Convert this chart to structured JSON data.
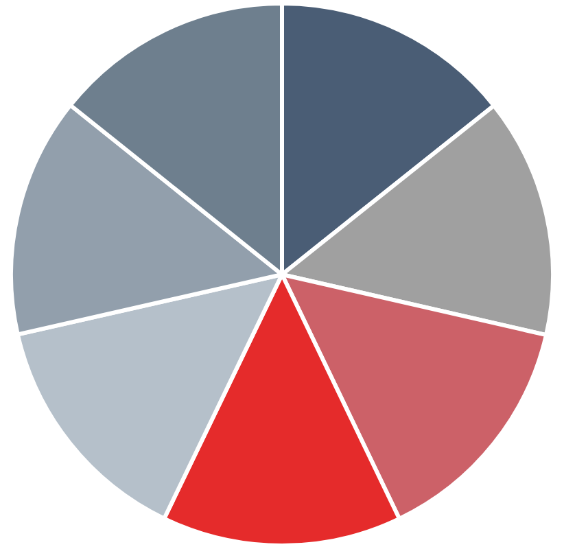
{
  "chart_data": {
    "type": "pie",
    "categories": [
      null,
      null,
      null,
      null,
      null,
      null,
      null
    ],
    "values": [
      14.29,
      14.29,
      14.29,
      14.29,
      14.29,
      14.29,
      14.26
    ],
    "colors": [
      "#4a5d75",
      "#a0a0a0",
      "#cc6168",
      "#e52b2b",
      "#b5c0ca",
      "#929fac",
      "#6e7f8e"
    ],
    "legend": false
  }
}
